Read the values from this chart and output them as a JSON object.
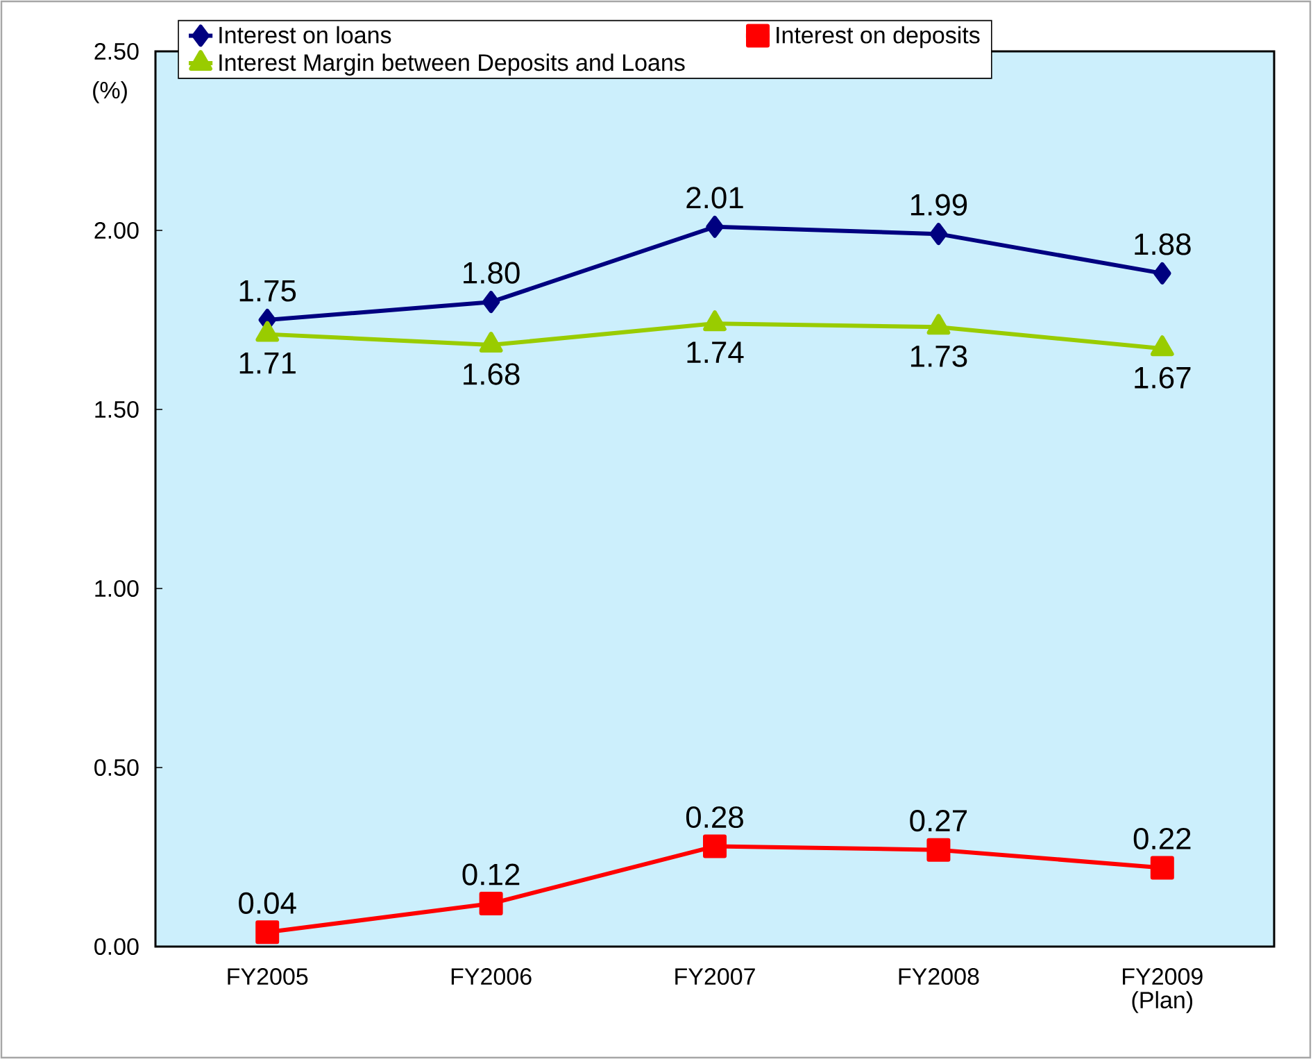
{
  "chart_data": {
    "type": "line",
    "ylabel": "(%)",
    "categories": [
      "FY2005",
      "FY2006",
      "FY2007",
      "FY2008",
      "FY2009 (Plan)"
    ],
    "series": [
      {
        "name": "Interest on loans",
        "color": "#000080",
        "marker": "diamond",
        "values": [
          1.75,
          1.8,
          2.01,
          1.99,
          1.88
        ],
        "value_labels": [
          "1.75",
          "1.80",
          "2.01",
          "1.99",
          "1.88"
        ]
      },
      {
        "name": "Interest on deposits",
        "color": "#ff0000",
        "marker": "square",
        "values": [
          0.04,
          0.12,
          0.28,
          0.27,
          0.22
        ],
        "value_labels": [
          "0.04",
          "0.12",
          "0.28",
          "0.27",
          "0.22"
        ]
      },
      {
        "name": "Interest Margin between Deposits and Loans",
        "color": "#99cc00",
        "marker": "triangle",
        "values": [
          1.71,
          1.68,
          1.74,
          1.73,
          1.67
        ],
        "value_labels": [
          "1.71",
          "1.68",
          "1.74",
          "1.73",
          "1.67"
        ]
      }
    ],
    "ylim": [
      0,
      2.5
    ],
    "yticks": [
      {
        "value": 0,
        "label": "0.00"
      },
      {
        "value": 0.5,
        "label": "0.50"
      },
      {
        "value": 1,
        "label": "1.00"
      },
      {
        "value": 1.5,
        "label": "1.50"
      },
      {
        "value": 2,
        "label": "2.00"
      },
      {
        "value": 2.5,
        "label": "2.50"
      }
    ],
    "grid": false,
    "legend": "top"
  }
}
